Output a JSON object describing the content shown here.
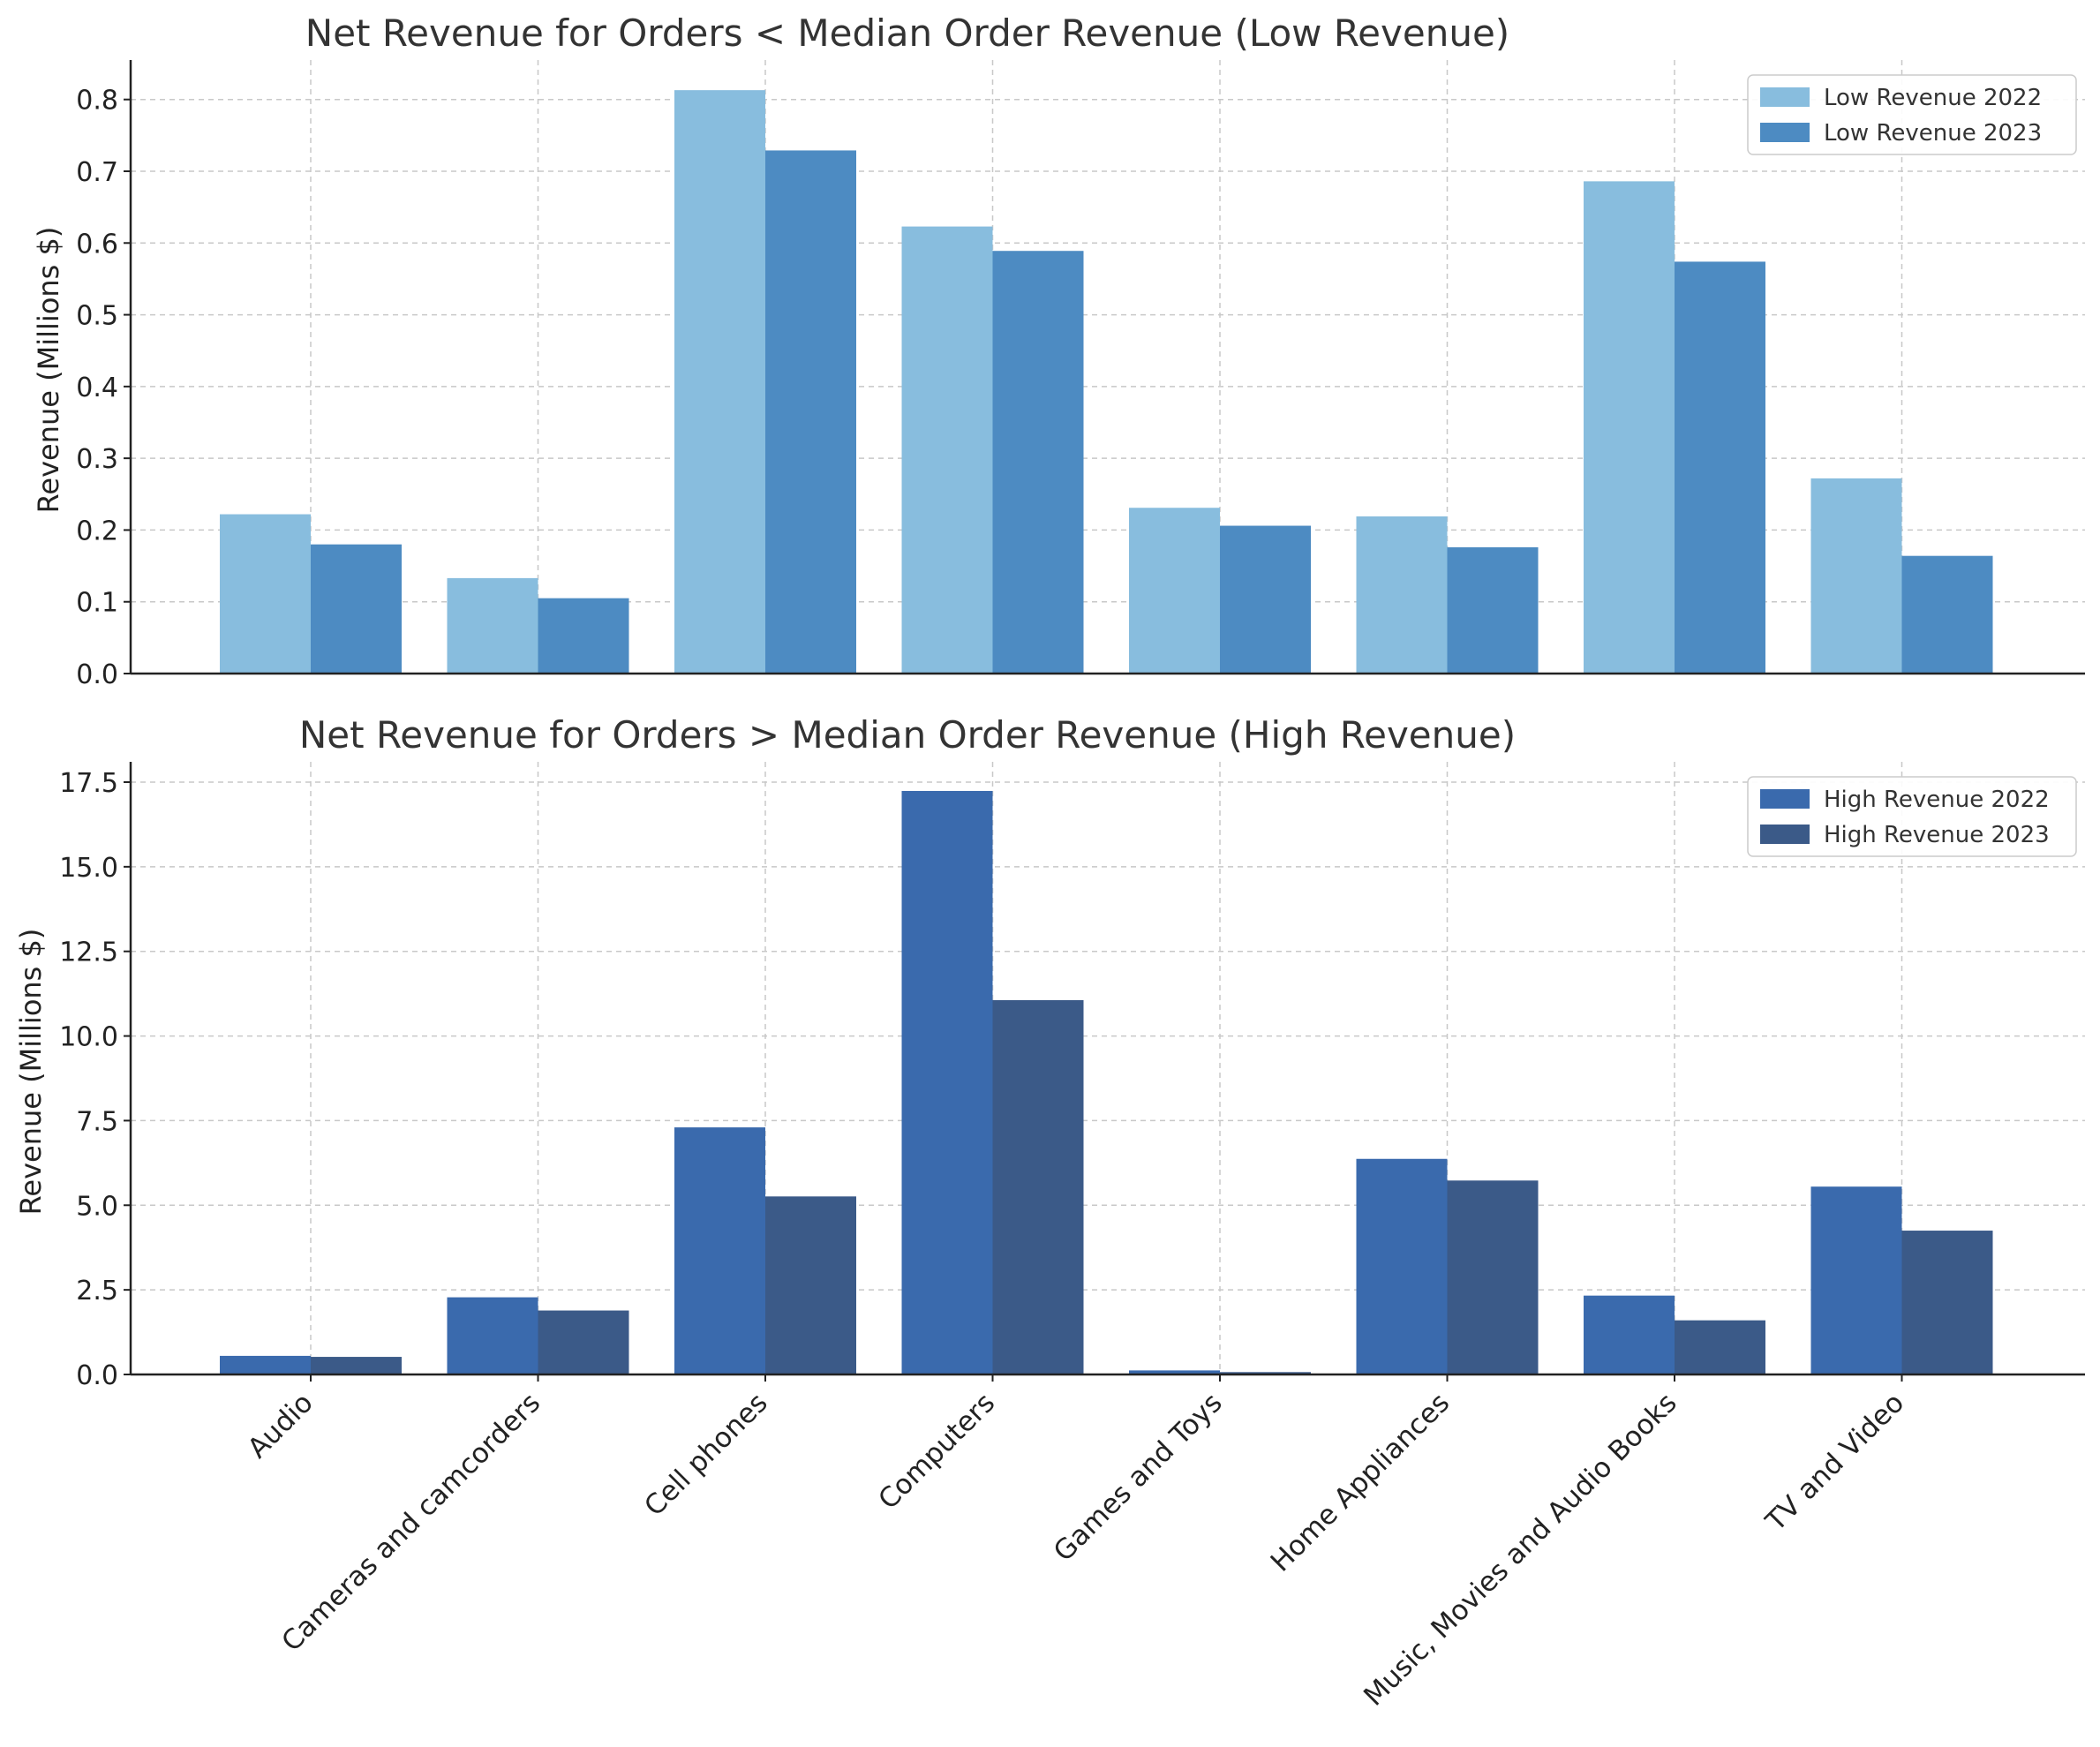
{
  "chart_data": [
    {
      "type": "bar",
      "title": "Net Revenue for Orders < Median Order Revenue (Low Revenue)",
      "xlabel": "",
      "ylabel": "Revenue (Millions $)",
      "ylim": [
        0,
        0.855
      ],
      "yticks": [
        0.0,
        0.1,
        0.2,
        0.3,
        0.4,
        0.5,
        0.6,
        0.7,
        0.8
      ],
      "ytick_labels": [
        "0.0",
        "0.1",
        "0.2",
        "0.3",
        "0.4",
        "0.5",
        "0.6",
        "0.7",
        "0.8"
      ],
      "grid": true,
      "legend_position": "top-right",
      "categories": [
        "Audio",
        "Cameras and camcorders",
        "Cell phones",
        "Computers",
        "Games and Toys",
        "Home Appliances",
        "Music, Movies and Audio Books",
        "TV and Video"
      ],
      "series": [
        {
          "name": "Low Revenue 2022",
          "color": "#88bdde",
          "values": [
            0.222,
            0.133,
            0.813,
            0.623,
            0.231,
            0.219,
            0.686,
            0.272
          ]
        },
        {
          "name": "Low Revenue 2023",
          "color": "#4d8bc2",
          "values": [
            0.18,
            0.105,
            0.729,
            0.589,
            0.206,
            0.176,
            0.574,
            0.164
          ]
        }
      ]
    },
    {
      "type": "bar",
      "title": "Net Revenue for Orders > Median Order Revenue (High Revenue)",
      "xlabel": "",
      "ylabel": "Revenue (Millions $)",
      "ylim": [
        0,
        18.1
      ],
      "yticks": [
        0.0,
        2.5,
        5.0,
        7.5,
        10.0,
        12.5,
        15.0,
        17.5
      ],
      "ytick_labels": [
        "0.0",
        "2.5",
        "5.0",
        "7.5",
        "10.0",
        "12.5",
        "15.0",
        "17.5"
      ],
      "grid": true,
      "legend_position": "top-right",
      "categories": [
        "Audio",
        "Cameras and camcorders",
        "Cell phones",
        "Computers",
        "Games and Toys",
        "Home Appliances",
        "Music, Movies and Audio Books",
        "TV and Video"
      ],
      "series": [
        {
          "name": "High Revenue 2022",
          "color": "#3a6aad",
          "values": [
            0.55,
            2.28,
            7.3,
            17.24,
            0.12,
            6.37,
            2.33,
            5.55
          ]
        },
        {
          "name": "High Revenue 2023",
          "color": "#3b5a88",
          "values": [
            0.52,
            1.89,
            5.26,
            11.06,
            0.07,
            5.73,
            1.6,
            4.25
          ]
        }
      ]
    }
  ]
}
